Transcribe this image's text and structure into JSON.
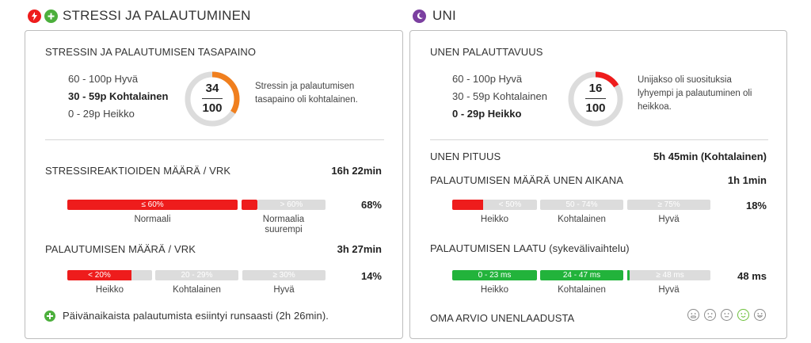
{
  "stress": {
    "title": "STRESSI JA PALAUTUMINEN",
    "balance": {
      "heading": "STRESSIN JA PALAUTUMISEN TASAPAINO",
      "legend": [
        "60 - 100p Hyvä",
        "30 - 59p Kohtalainen",
        "0 - 29p Heikko"
      ],
      "active_index": 1,
      "score": "34",
      "max": "100",
      "score_value": 34,
      "gauge_color": "#f07f1e",
      "description_1": "Stressin ja palautumisen",
      "description_2": "tasapaino oli kohtalainen."
    },
    "reactions": {
      "heading": "STRESSIREAKTIOIDEN MÄÄRÄ / VRK",
      "time": "16h 22min",
      "percent": "68%",
      "seg1": "≤ 60%",
      "seg2": "> 60%",
      "label1": "Normaali",
      "label2_line1": "Normaalia",
      "label2_line2": "suurempi"
    },
    "recovery": {
      "heading": "PALAUTUMISEN MÄÄRÄ / VRK",
      "time": "3h 27min",
      "percent": "14%",
      "seg1": "< 20%",
      "seg2": "20 - 29%",
      "seg3": "≥ 30%",
      "label1": "Heikko",
      "label2": "Kohtalainen",
      "label3": "Hyvä"
    },
    "note": "Päivänaikaista palautumista esiintyi runsaasti (2h 26min)."
  },
  "sleep": {
    "title": "UNI",
    "restorative": {
      "heading": "UNEN PALAUTTAVUUS",
      "legend": [
        "60 - 100p Hyvä",
        "30 - 59p Kohtalainen",
        "0 - 29p Heikko"
      ],
      "active_index": 2,
      "score": "16",
      "max": "100",
      "score_value": 16,
      "gauge_color": "#ee1c1c",
      "description_1": "Unijakso oli suosituksia",
      "description_2": "lyhyempi ja palautuminen oli",
      "description_3": "heikkoa."
    },
    "length": {
      "label": "UNEN PITUUS",
      "value": "5h 45min (Kohtalainen)"
    },
    "recovery_amount": {
      "heading": "PALAUTUMISEN MÄÄRÄ UNEN AIKANA",
      "time": "1h 1min",
      "percent": "18%",
      "seg1": "< 50%",
      "seg2": "50 - 74%",
      "seg3": "≥ 75%",
      "label1": "Heikko",
      "label2": "Kohtalainen",
      "label3": "Hyvä"
    },
    "recovery_quality": {
      "heading": "PALAUTUMISEN LAATU (sykevälivaihtelu)",
      "value": "48 ms",
      "seg1": "0 - 23 ms",
      "seg2": "24 - 47 ms",
      "seg3": "≥ 48 ms",
      "label1": "Heikko",
      "label2": "Kohtalainen",
      "label3": "Hyvä"
    },
    "self_rating": {
      "label": "OMA ARVIO UNENLAADUSTA",
      "faces": [
        "very-sad-face-icon",
        "sad-face-icon",
        "neutral-face-icon",
        "happy-face-icon",
        "very-happy-face-icon"
      ],
      "selected_index": 3
    }
  },
  "colors": {
    "red": "#ee1c1c",
    "green": "#22b33b",
    "orange": "#f07f1e",
    "purple": "#7b3fa0",
    "grey": "#dcdcdc"
  }
}
